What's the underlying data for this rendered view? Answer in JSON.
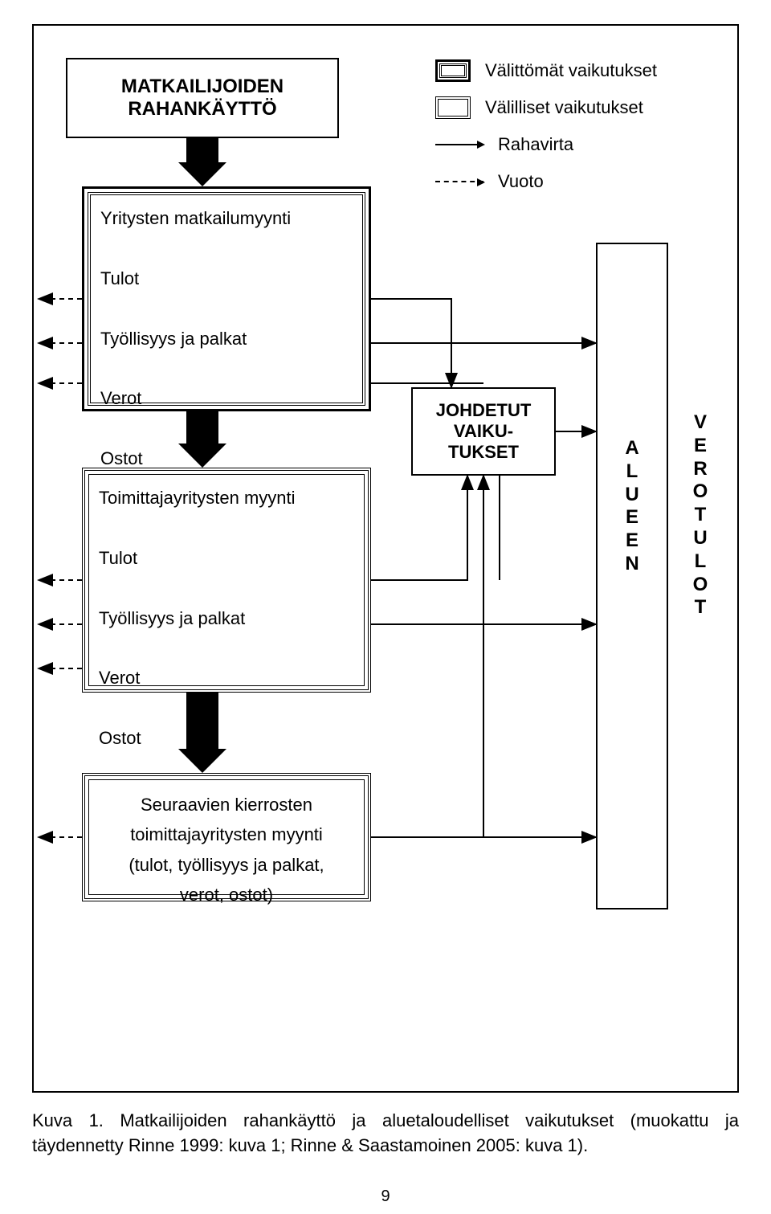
{
  "title": {
    "line1": "MATKAILIJOIDEN",
    "line2": "RAHANKÄYTTÖ"
  },
  "legend": {
    "direct": "Välittömät vaikutukset",
    "indirect": "Välilliset vaikutukset",
    "moneyflow": "Rahavirta",
    "leak": "Vuoto"
  },
  "box1": {
    "line1": "Yritysten matkailumyynti",
    "line2": "Tulot",
    "line3": "Työllisyys ja palkat",
    "line4": "Verot",
    "line5": "Ostot"
  },
  "box2": {
    "line1": "Toimittajayritysten myynti",
    "line2": "Tulot",
    "line3": "Työllisyys ja palkat",
    "line4": "Verot",
    "line5": "Ostot"
  },
  "box3": {
    "line1": "Seuraavien kierrosten",
    "line2": "toimittajayritysten myynti",
    "line3": "(tulot, työllisyys ja palkat,",
    "line4": "verot, ostot)"
  },
  "derived": {
    "line1": "JOHDETUT",
    "line2": "VAIKU-",
    "line3": "TUKSET"
  },
  "alueen": "ALUEEN",
  "verotulot": "VEROTULOT",
  "caption": "Kuva 1. Matkailijoiden rahankäyttö ja aluetaloudelliset vaikutukset (muokattu ja täydennetty Rinne 1999: kuva 1; Rinne & Saastamoinen 2005: kuva 1).",
  "pagenum": "9",
  "colors": {
    "line": "#000000",
    "bg": "#ffffff"
  }
}
